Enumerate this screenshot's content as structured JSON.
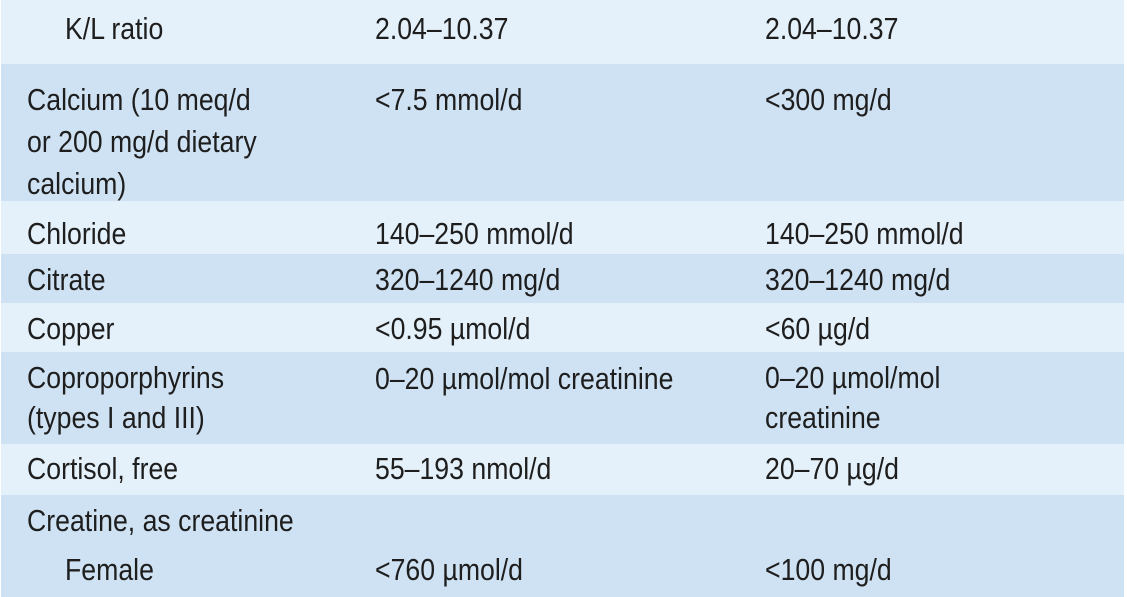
{
  "rows": [
    {
      "analyte": "K/L ratio",
      "si": "2.04–10.37",
      "conventional": "2.04–10.37"
    },
    {
      "analyte": [
        "Calcium (10 meq/d",
        "or 200 mg/d dietary",
        "calcium)"
      ],
      "si": "<7.5 mmol/d",
      "conventional": "<300 mg/d"
    },
    {
      "analyte": "Chloride",
      "si": "140–250 mmol/d",
      "conventional": "140–250 mmol/d"
    },
    {
      "analyte": "Citrate",
      "si": "320–1240 mg/d",
      "conventional": "320–1240 mg/d"
    },
    {
      "analyte": "Copper",
      "si": "<0.95 µmol/d",
      "conventional": "<60 µg/d"
    },
    {
      "analyte": [
        "Coproporphyrins",
        "(types I and III)"
      ],
      "si": "0–20 µmol/mol creatinine",
      "conventional": [
        "0–20 µmol/mol",
        "creatinine"
      ]
    },
    {
      "analyte": "Cortisol, free",
      "si": "55–193 nmol/d",
      "conventional": "20–70 µg/d"
    },
    {
      "analyte": "Creatine, as creatinine",
      "si": "",
      "conventional": ""
    },
    {
      "analyte": "Female",
      "si": "<760 µmol/d",
      "conventional": "<100 mg/d"
    }
  ],
  "colors": {
    "row_light": "#e4f1fa",
    "row_dark": "#cfe2f3",
    "text": "#1e1e1e"
  }
}
